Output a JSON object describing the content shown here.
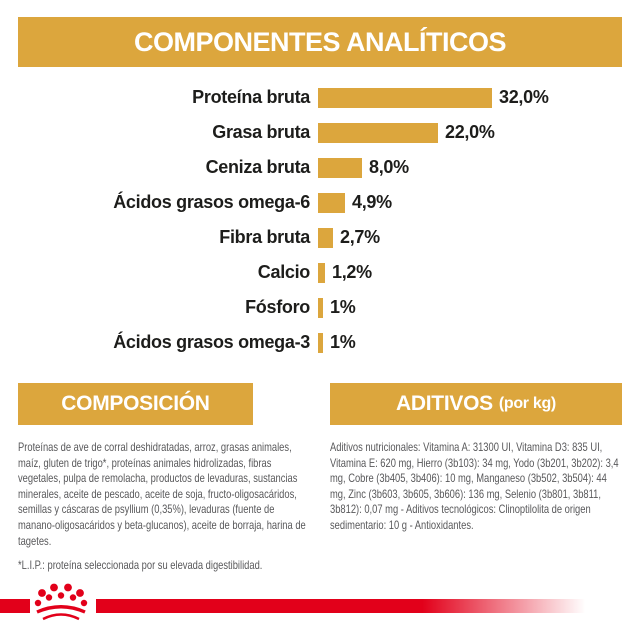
{
  "colors": {
    "gold": "#DCA63D",
    "red": "#E2001A",
    "label_text": "#1D1D1B",
    "body_text": "#58585A"
  },
  "header": {
    "title": "COMPONENTES ANALÍTICOS"
  },
  "chart_data": {
    "type": "bar",
    "orientation": "horizontal",
    "title": "COMPONENTES ANALÍTICOS",
    "xlabel": "",
    "ylabel": "",
    "xlim": [
      0,
      36
    ],
    "grid": false,
    "legend": false,
    "bar_color": "#DCA63D",
    "categories": [
      "Proteína bruta",
      "Grasa bruta",
      "Ceniza bruta",
      "Ácidos grasos omega-6",
      "Fibra bruta",
      "Calcio",
      "Fósforo",
      "Ácidos grasos omega-3"
    ],
    "values": [
      32.0,
      22.0,
      8.0,
      4.9,
      2.7,
      1.2,
      1.0,
      1.0
    ],
    "value_labels": [
      "32,0%",
      "22,0%",
      "8,0%",
      "4,9%",
      "2,7%",
      "1,2%",
      "1%",
      "1%"
    ]
  },
  "composition": {
    "title": "COMPOSICIÓN",
    "body": "Proteínas de ave de corral deshidratadas, arroz, grasas animales, maíz, gluten de trigo*, proteínas animales hidrolizadas, fibras vegetales, pulpa de remolacha, productos de levaduras, sustancias minerales, aceite de pescado, aceite de soja, fructo-oligosacáridos, semillas y cáscaras de psyllium (0,35%), levaduras (fuente de manano-oligosacáridos y beta-glucanos), aceite de borraja, harina de tagetes.",
    "footnote": "*L.I.P.: proteína seleccionada por su elevada digestibilidad."
  },
  "additives": {
    "title": "ADITIVOS",
    "title_suffix": "(por kg)",
    "body": "Aditivos nutricionales: Vitamina A: 31300 UI, Vitamina D3: 835 UI, Vitamina E: 620 mg, Hierro (3b103): 34 mg, Yodo (3b201, 3b202): 3,4 mg, Cobre (3b405, 3b406): 10 mg, Manganeso (3b502, 3b504): 44 mg, Zinc (3b603, 3b605, 3b606): 136 mg, Selenio (3b801, 3b811, 3b812): 0,07 mg - Aditivos tecnológicos: Clinoptilolita de origen sedimentario: 10 g - Antioxidantes."
  },
  "footer": {
    "logo": "royal-canin-crown"
  }
}
